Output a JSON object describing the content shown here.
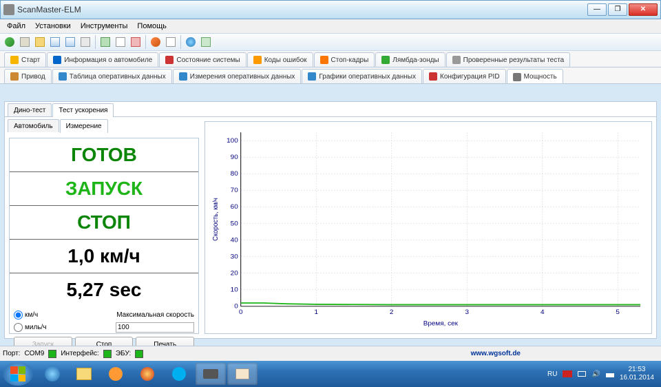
{
  "window": {
    "title": "ScanMaster-ELM"
  },
  "menubar": {
    "items": [
      "Файл",
      "Установки",
      "Инструменты",
      "Помощь"
    ]
  },
  "tabs_row1": [
    {
      "label": "Старт",
      "icon": "#f7b500"
    },
    {
      "label": "Информация о автомобиле",
      "icon": "#0066cc"
    },
    {
      "label": "Состояние системы",
      "icon": "#cc3333"
    },
    {
      "label": "Коды ошибок",
      "icon": "#ff9900"
    },
    {
      "label": "Стоп-кадры",
      "icon": "#ff7700"
    },
    {
      "label": "Лямбда-зонды",
      "icon": "#33aa33"
    },
    {
      "label": "Проверенные результаты теста",
      "icon": "#999"
    }
  ],
  "tabs_row2": [
    {
      "label": "Привод",
      "icon": "#cc8833"
    },
    {
      "label": "Таблица оперативных данных",
      "icon": "#3388cc"
    },
    {
      "label": "Измерения оперативных данных",
      "icon": "#3388cc"
    },
    {
      "label": "Графики оперативных данных",
      "icon": "#3388cc"
    },
    {
      "label": "Конфигурация PID",
      "icon": "#cc3333"
    },
    {
      "label": "Мощность",
      "icon": "#777",
      "active": true
    }
  ],
  "subtabs_outer": [
    {
      "label": "Дино-тест"
    },
    {
      "label": "Тест ускорения",
      "active": true
    }
  ],
  "subtabs_inner": [
    {
      "label": "Автомобиль"
    },
    {
      "label": "Измерение",
      "active": true
    }
  ],
  "readout": {
    "ready": "ГОТОВ",
    "start": "ЗАПУСК",
    "stop": "СТОП",
    "speed": "1,0 км/ч",
    "time": "5,27 sec"
  },
  "controls": {
    "unit_kmh": "км/ч",
    "unit_mph": "миль/ч",
    "maxspeed_label": "Максимальная скорость",
    "maxspeed_value": "100",
    "btn_start": "Запуск",
    "btn_stop": "Стоп",
    "btn_print": "Печать"
  },
  "chart": {
    "type": "line",
    "ylabel": "Скорость, км/ч",
    "xlabel": "Время, сек",
    "xlim": [
      0,
      5.3
    ],
    "xticks": [
      0,
      1,
      2,
      3,
      4,
      5
    ],
    "ylim": [
      0,
      105
    ],
    "yticks": [
      0,
      10,
      20,
      30,
      40,
      50,
      60,
      70,
      80,
      90,
      100
    ],
    "grid_color": "#cccccc",
    "axis_text_color": "#000080",
    "line_color": "#1db517",
    "data": [
      [
        0,
        2
      ],
      [
        0.3,
        2
      ],
      [
        0.6,
        1.5
      ],
      [
        1,
        1.2
      ],
      [
        2,
        1
      ],
      [
        3,
        1
      ],
      [
        4,
        1
      ],
      [
        5,
        1
      ],
      [
        5.3,
        1
      ]
    ]
  },
  "status": {
    "port_label": "Порт:",
    "port_value": "COM9",
    "iface_label": "Интерфейс:",
    "ecu_label": "ЭБУ:",
    "link": "www.wgsoft.de"
  },
  "tray": {
    "lang": "RU",
    "time": "21:53",
    "date": "16.01.2014"
  }
}
